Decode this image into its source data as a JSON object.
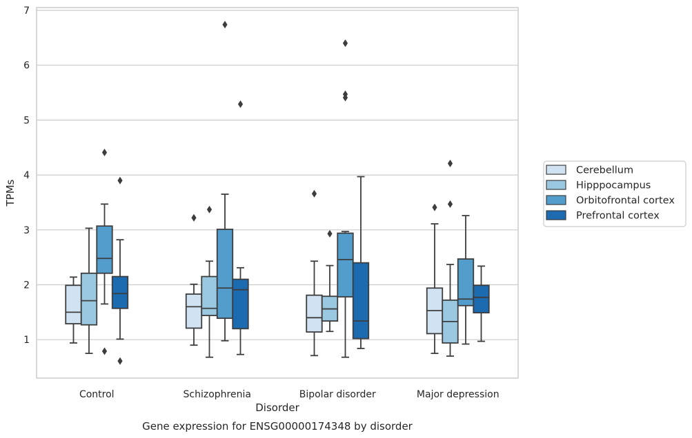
{
  "chart_data": {
    "type": "box",
    "xlabel": "Disorder",
    "ylabel": "TPMs",
    "caption": "Gene expression for ENSG00000174348 by disorder",
    "ylim": [
      0.3,
      7.05
    ],
    "yticks": [
      1,
      2,
      3,
      4,
      5,
      6,
      7
    ],
    "grid": true,
    "legend_position": "right",
    "categories": [
      "Control",
      "Schizophrenia",
      "Bipolar disorder",
      "Major depression"
    ],
    "series": [
      {
        "name": "Cerebellum",
        "color": "#d1e3f3",
        "boxes": [
          {
            "whislo": 0.94,
            "q1": 1.29,
            "med": 1.5,
            "q3": 1.99,
            "whishi": 2.14,
            "fliers": []
          },
          {
            "whislo": 0.9,
            "q1": 1.21,
            "med": 1.6,
            "q3": 1.83,
            "whishi": 2.01,
            "fliers": [
              3.22
            ]
          },
          {
            "whislo": 0.71,
            "q1": 1.14,
            "med": 1.4,
            "q3": 1.81,
            "whishi": 2.43,
            "fliers": [
              3.66
            ]
          },
          {
            "whislo": 0.75,
            "q1": 1.11,
            "med": 1.53,
            "q3": 1.94,
            "whishi": 3.11,
            "fliers": [
              3.41
            ]
          }
        ]
      },
      {
        "name": "Hipppocampus",
        "color": "#9ac8e0",
        "boxes": [
          {
            "whislo": 0.75,
            "q1": 1.27,
            "med": 1.71,
            "q3": 2.21,
            "whishi": 3.03,
            "fliers": []
          },
          {
            "whislo": 0.68,
            "q1": 1.44,
            "med": 1.57,
            "q3": 2.15,
            "whishi": 2.43,
            "fliers": [
              3.37
            ]
          },
          {
            "whislo": 1.15,
            "q1": 1.34,
            "med": 1.56,
            "q3": 1.79,
            "whishi": 2.35,
            "fliers": [
              2.93
            ]
          },
          {
            "whislo": 0.7,
            "q1": 0.94,
            "med": 1.33,
            "q3": 1.72,
            "whishi": 2.37,
            "fliers": [
              3.47,
              4.21
            ]
          }
        ]
      },
      {
        "name": "Orbitofrontal cortex",
        "color": "#529dcc",
        "boxes": [
          {
            "whislo": 1.65,
            "q1": 2.21,
            "med": 2.48,
            "q3": 3.07,
            "whishi": 3.47,
            "fliers": [
              4.41,
              0.79
            ]
          },
          {
            "whislo": 0.98,
            "q1": 1.39,
            "med": 1.94,
            "q3": 3.01,
            "whishi": 3.65,
            "fliers": [
              6.74
            ]
          },
          {
            "whislo": 0.68,
            "q1": 1.78,
            "med": 2.46,
            "q3": 2.94,
            "whishi": 2.97,
            "fliers": [
              5.41,
              5.47,
              6.4
            ]
          },
          {
            "whislo": 0.92,
            "q1": 1.62,
            "med": 1.74,
            "q3": 2.47,
            "whishi": 3.26,
            "fliers": []
          }
        ]
      },
      {
        "name": "Prefrontal cortex",
        "color": "#1c6aaf",
        "boxes": [
          {
            "whislo": 1.01,
            "q1": 1.57,
            "med": 1.84,
            "q3": 2.15,
            "whishi": 2.82,
            "fliers": [
              3.9,
              0.61
            ]
          },
          {
            "whislo": 0.73,
            "q1": 1.2,
            "med": 1.91,
            "q3": 2.1,
            "whishi": 2.31,
            "fliers": [
              5.29
            ]
          },
          {
            "whislo": 0.84,
            "q1": 1.02,
            "med": 1.34,
            "q3": 2.4,
            "whishi": 3.97,
            "fliers": []
          },
          {
            "whislo": 0.97,
            "q1": 1.49,
            "med": 1.77,
            "q3": 1.99,
            "whishi": 2.34,
            "fliers": []
          }
        ]
      }
    ]
  }
}
